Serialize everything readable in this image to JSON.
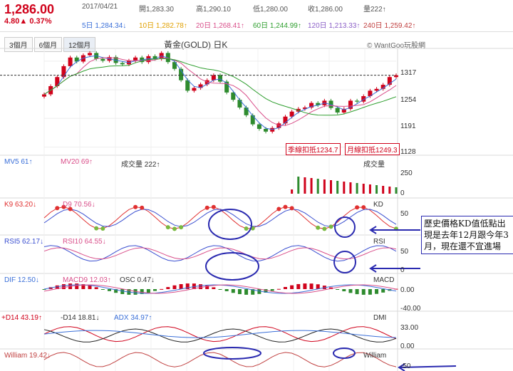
{
  "header": {
    "price": "1,286.00",
    "change": "4.80",
    "change_pct": "0.37%",
    "date": "2017/04/21",
    "open": "開1,283.30",
    "high": "高1,290.10",
    "low": "低1,280.00",
    "close": "收1,286.00",
    "volume": "量222↑",
    "ma5": "5日 1,284.34↓",
    "ma10": "10日 1,282.78↑",
    "ma20": "20日 1,268.41↑",
    "ma60": "60日 1,244.99↑",
    "ma120": "120日 1,213.33↑",
    "ma240": "240日 1,259.42↑"
  },
  "tabs": [
    "3個月",
    "6個月",
    "12個月"
  ],
  "chart_title": "黃金(GOLD) 日K",
  "brand": "© WantGoo玩股網",
  "colors": {
    "up": "#d0021b",
    "down": "#2e8b2e",
    "ma5": "#3a6fd8",
    "ma10": "#e0a000",
    "ma20": "#d94f8a",
    "ma60": "#2e9e2e",
    "kline": "#e03030",
    "dline": "#3a4fd0",
    "annot": "#2a2ab0"
  },
  "chart_data": [
    {
      "type": "line",
      "name": "price",
      "yticks": [
        1317,
        1254,
        1191,
        1128
      ],
      "ylim": [
        1110,
        1345
      ],
      "series": [
        {
          "name": "close",
          "values": [
            1244,
            1262,
            1282,
            1306,
            1325,
            1316,
            1330,
            1335,
            1322,
            1318,
            1326,
            1313,
            1310,
            1318,
            1325,
            1315,
            1328,
            1322,
            1335,
            1315,
            1300,
            1275,
            1252,
            1258,
            1266,
            1275,
            1286,
            1272,
            1248,
            1232,
            1215,
            1198,
            1178,
            1168,
            1162,
            1170,
            1180,
            1195,
            1206,
            1212,
            1215,
            1225,
            1220,
            1230,
            1214,
            1204,
            1212,
            1230,
            1228,
            1240,
            1252,
            1256,
            1265,
            1282,
            1286
          ]
        }
      ],
      "annotations": [
        {
          "text": "季線扣抵1234.7"
        },
        {
          "text": "月線扣抵1249.3"
        }
      ]
    },
    {
      "type": "bar",
      "name": "volume",
      "labels": {
        "mv5": "MV5 61↑",
        "mv20": "MV20 69↑",
        "vol": "成交量 222↑",
        "tag": "成交量"
      },
      "yticks": [
        "250",
        "0"
      ]
    },
    {
      "type": "line",
      "name": "KD",
      "labels": {
        "k": "K9 63.20↓",
        "d": "D9 70.56↓",
        "tag": "KD"
      },
      "yticks": [
        "50"
      ],
      "ylim": [
        0,
        100
      ]
    },
    {
      "type": "line",
      "name": "RSI",
      "labels": {
        "r5": "RSI5 62.17↓",
        "r10": "RSI10 64.55↓",
        "tag": "RSI"
      },
      "yticks": [
        "50",
        "0"
      ],
      "ylim": [
        0,
        100
      ]
    },
    {
      "type": "bar",
      "name": "MACD",
      "labels": {
        "dif": "DIF 12.50↓",
        "macd": "MACD9 12.03↑",
        "osc": "OSC 0.47↓",
        "tag": "MACD"
      },
      "yticks": [
        "0.00",
        "-40.00"
      ]
    },
    {
      "type": "line",
      "name": "DMI",
      "labels": {
        "pdi": "+D14 43.19↑",
        "mdi": "-D14 18.81↓",
        "adx": "ADX 34.97↑",
        "tag": "DMI"
      },
      "yticks": [
        "33.00",
        "0.00"
      ]
    },
    {
      "type": "line",
      "name": "William",
      "labels": {
        "w": "William 19.42↓",
        "tag": "William"
      },
      "yticks": [
        "-50"
      ]
    }
  ],
  "note": "歷史價格KD值低點出現是去年12月跟今年3月，現在還不宜進場"
}
